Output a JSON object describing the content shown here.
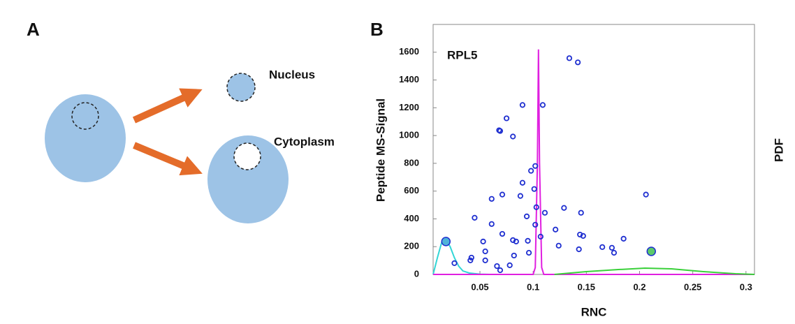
{
  "panel_a": {
    "label": "A",
    "nucleus": "Nucleus",
    "cytoplasm": "Cytoplasm"
  },
  "chart_data": {
    "type": "scatter",
    "label": "B",
    "title": "RPL5",
    "y_label": "Peptide MS-Signal",
    "x_label": "RNC",
    "y2_label": "PDF",
    "xlim": [
      0.006,
      0.308
    ],
    "ylim": [
      0,
      1800
    ],
    "xticks": [
      0.05,
      0.1,
      0.15,
      0.2,
      0.25,
      0.3
    ],
    "yticks": [
      0,
      200,
      400,
      600,
      800,
      1000,
      1200,
      1400,
      1600
    ],
    "color": "#1f2fd0",
    "x": [
      0.134,
      0.142,
      0.09,
      0.109,
      0.075,
      0.068,
      0.069,
      0.081,
      0.102,
      0.098,
      0.09,
      0.071,
      0.101,
      0.206,
      0.088,
      0.061,
      0.103,
      0.111,
      0.129,
      0.145,
      0.094,
      0.045,
      0.061,
      0.102,
      0.121,
      0.071,
      0.107,
      0.144,
      0.147,
      0.095,
      0.081,
      0.084,
      0.053,
      0.124,
      0.143,
      0.165,
      0.174,
      0.176,
      0.185,
      0.055,
      0.096,
      0.082,
      0.042,
      0.041,
      0.055,
      0.026,
      0.066,
      0.078,
      0.069
    ],
    "values": [
      1557,
      1527,
      1220,
      1220,
      1124,
      1038,
      1033,
      993,
      781,
      746,
      660,
      575,
      615,
      575,
      565,
      544,
      484,
      444,
      479,
      444,
      418,
      408,
      363,
      358,
      323,
      292,
      272,
      287,
      277,
      242,
      247,
      237,
      237,
      207,
      181,
      197,
      192,
      156,
      257,
      166,
      156,
      136,
      121,
      101,
      101,
      81,
      60,
      66,
      30
    ],
    "highlights": {
      "x": [
        0.018,
        0.211
      ],
      "values": [
        237,
        166
      ],
      "colors": [
        "#4fb3d9",
        "#5cc96a"
      ]
    },
    "curves": [
      {
        "color": "#33d6d6",
        "x": [
          0.006,
          0.01,
          0.014,
          0.018,
          0.022,
          0.026,
          0.03,
          0.034,
          0.04,
          0.05,
          0.06
        ],
        "values": [
          0,
          120,
          230,
          250,
          200,
          120,
          60,
          25,
          10,
          2,
          0
        ]
      },
      {
        "color": "#e020e0",
        "x": [
          0.006,
          0.1,
          0.102,
          0.104,
          0.105,
          0.106,
          0.108,
          0.11,
          0.308
        ],
        "values": [
          0,
          0,
          50,
          800,
          1620,
          800,
          50,
          0,
          0
        ]
      },
      {
        "color": "#3ad03a",
        "x": [
          0.12,
          0.15,
          0.18,
          0.205,
          0.23,
          0.26,
          0.29,
          0.308
        ],
        "values": [
          0,
          20,
          35,
          45,
          40,
          20,
          5,
          0
        ]
      }
    ]
  }
}
